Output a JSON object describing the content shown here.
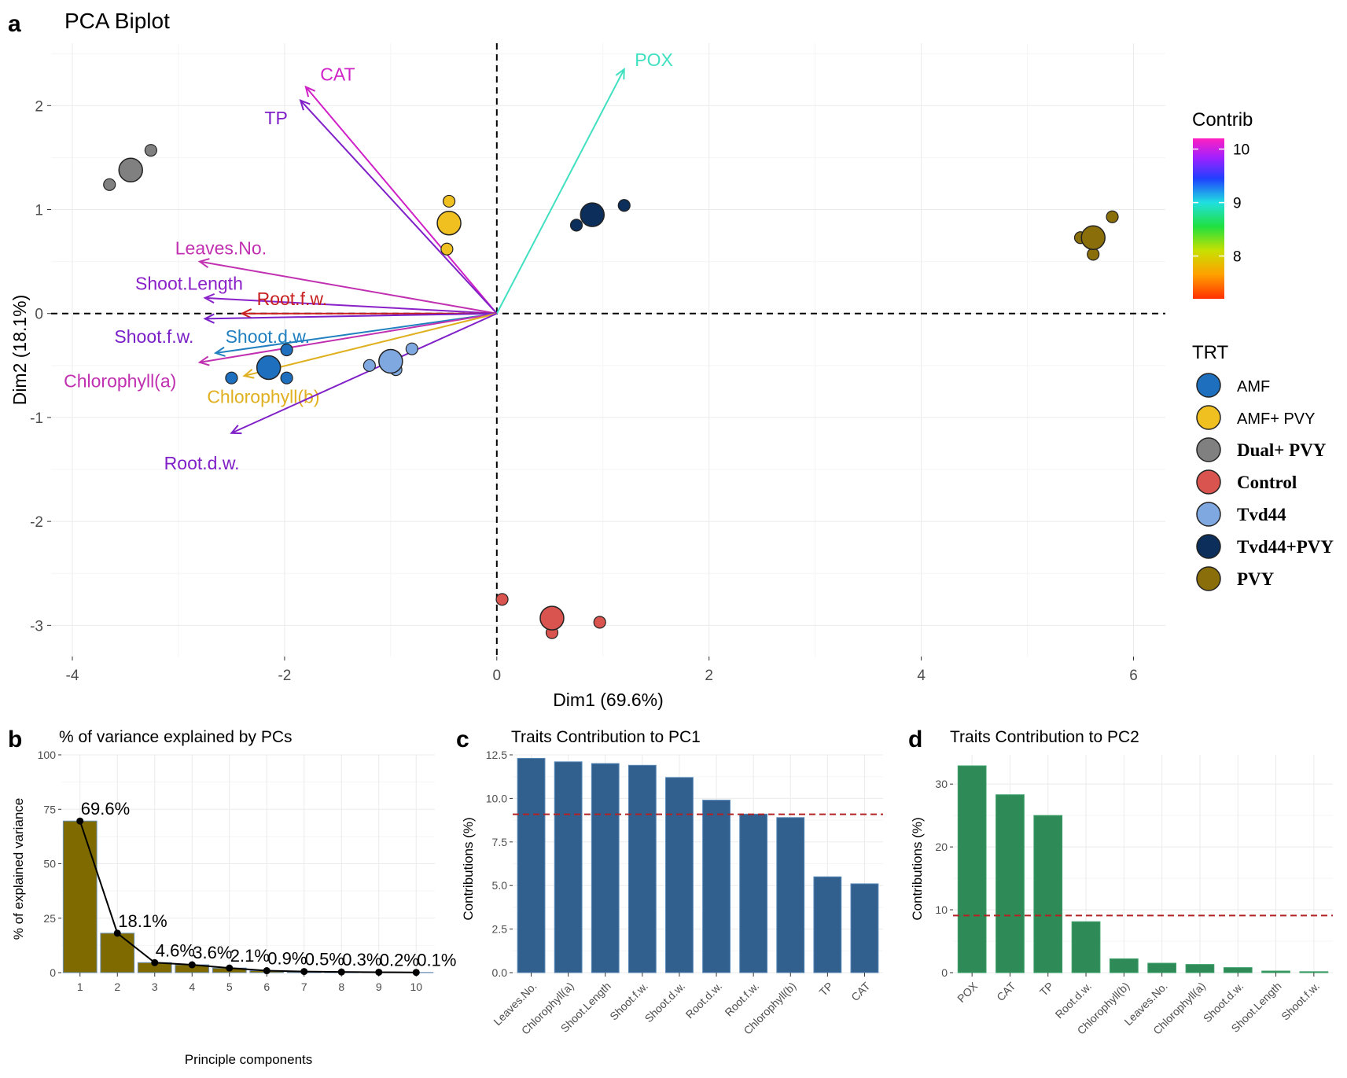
{
  "chart_data": [
    {
      "panel": "a",
      "type": "scatter",
      "title": "PCA Biplot",
      "xlabel": "Dim1 (69.6%)",
      "ylabel": "Dim2 (18.1%)",
      "xlim": [
        -4.2,
        6.3
      ],
      "ylim": [
        -3.3,
        2.6
      ],
      "xticks": [
        -4,
        -2,
        0,
        2,
        4,
        6
      ],
      "yticks": [
        -3,
        -2,
        -1,
        0,
        1,
        2
      ],
      "groups": [
        {
          "name": "AMF",
          "color": "#1f6fbf",
          "centroid": [
            -2.15,
            -0.52
          ],
          "points": [
            [
              -2.5,
              -0.62
            ],
            [
              -1.98,
              -0.35
            ],
            [
              -1.98,
              -0.62
            ]
          ]
        },
        {
          "name": "AMF+ PVY",
          "color": "#f0c020",
          "centroid": [
            -0.45,
            0.87
          ],
          "points": [
            [
              -0.45,
              1.08
            ],
            [
              -0.47,
              0.62
            ]
          ]
        },
        {
          "name": "Dual+ PVY",
          "color": "#808080",
          "centroid": [
            -3.45,
            1.38
          ],
          "points": [
            [
              -3.26,
              1.57
            ],
            [
              -3.65,
              1.24
            ]
          ]
        },
        {
          "name": "Control",
          "color": "#d9534f",
          "centroid": [
            0.52,
            -2.93
          ],
          "points": [
            [
              0.05,
              -2.75
            ],
            [
              0.97,
              -2.97
            ],
            [
              0.52,
              -3.07
            ]
          ]
        },
        {
          "name": "Tvd44",
          "color": "#7fa8e0",
          "centroid": [
            -1.0,
            -0.46
          ],
          "points": [
            [
              -0.8,
              -0.34
            ],
            [
              -1.2,
              -0.5
            ],
            [
              -0.95,
              -0.54
            ]
          ]
        },
        {
          "name": "Tvd44+PVY",
          "color": "#0b2e5a",
          "centroid": [
            0.9,
            0.95
          ],
          "points": [
            [
              1.2,
              1.04
            ],
            [
              0.75,
              0.85
            ]
          ]
        },
        {
          "name": "PVY",
          "color": "#8a6e0a",
          "centroid": [
            5.62,
            0.73
          ],
          "points": [
            [
              5.8,
              0.93
            ],
            [
              5.5,
              0.73
            ],
            [
              5.62,
              0.57
            ]
          ]
        }
      ],
      "variables": [
        {
          "name": "CAT",
          "x": -1.8,
          "y": 2.18,
          "contrib": 9.8,
          "color": "#d020c8",
          "label_x": -1.5,
          "label_y": 2.3
        },
        {
          "name": "TP",
          "x": -1.85,
          "y": 2.05,
          "contrib": 9.3,
          "color": "#8020c8",
          "label_x": -2.08,
          "label_y": 1.88
        },
        {
          "name": "POX",
          "x": 1.2,
          "y": 2.35,
          "contrib": 8.6,
          "color": "#40e0c0",
          "label_x": 1.48,
          "label_y": 2.44
        },
        {
          "name": "Leaves.No.",
          "x": -2.8,
          "y": 0.5,
          "contrib": 9.9,
          "color": "#c030b0",
          "label_x": -2.6,
          "label_y": 0.63
        },
        {
          "name": "Shoot.Length",
          "x": -2.75,
          "y": 0.15,
          "contrib": 9.6,
          "color": "#8a20c8",
          "label_x": -2.9,
          "label_y": 0.29
        },
        {
          "name": "Root.f.w.",
          "x": -2.4,
          "y": 0.0,
          "contrib": 7.0,
          "color": "#c82020",
          "label_x": -1.93,
          "label_y": 0.14
        },
        {
          "name": "Shoot.f.w.",
          "x": -2.75,
          "y": -0.05,
          "contrib": 9.5,
          "color": "#7a20c8",
          "label_x": -3.23,
          "label_y": -0.22
        },
        {
          "name": "Shoot.d.w.",
          "x": -2.65,
          "y": -0.38,
          "contrib": 8.8,
          "color": "#2080c0",
          "label_x": -2.16,
          "label_y": -0.22
        },
        {
          "name": "Chlorophyll(a)",
          "x": -2.8,
          "y": -0.47,
          "contrib": 9.7,
          "color": "#c030b0",
          "label_x": -3.55,
          "label_y": -0.65
        },
        {
          "name": "Chlorophyll(b)",
          "x": -2.38,
          "y": -0.6,
          "contrib": 7.5,
          "color": "#e0b020",
          "label_x": -2.2,
          "label_y": -0.8
        },
        {
          "name": "Root.d.w.",
          "x": -2.5,
          "y": -1.15,
          "contrib": 9.2,
          "color": "#8020c8",
          "label_x": -2.78,
          "label_y": -1.44
        }
      ],
      "legend_contrib": {
        "title": "Contrib",
        "ticks": [
          10,
          9,
          8
        ],
        "range": [
          7.2,
          10.2
        ]
      },
      "legend_trt": {
        "title": "TRT",
        "items": [
          "AMF",
          "AMF+ PVY",
          "Dual+ PVY",
          "Control",
          "Tvd44",
          "Tvd44+PVY",
          "PVY"
        ]
      }
    },
    {
      "panel": "b",
      "type": "bar",
      "title": "% of variance explained by PCs",
      "xlabel": "Principle components",
      "ylabel": "% of explained variance",
      "ylim": [
        0,
        100
      ],
      "yticks": [
        0,
        25,
        50,
        75,
        100
      ],
      "categories": [
        "1",
        "2",
        "3",
        "4",
        "5",
        "6",
        "7",
        "8",
        "9",
        "10"
      ],
      "values": [
        69.6,
        18.1,
        4.6,
        3.6,
        2.1,
        0.9,
        0.5,
        0.3,
        0.2,
        0.1
      ],
      "data_labels": [
        "69.6%",
        "18.1%",
        "4.6%",
        "3.6%",
        "2.1%",
        "0.9%",
        "0.5%",
        "0.3%",
        "0.2%",
        "0.1%"
      ],
      "color": "#7f6a00"
    },
    {
      "panel": "c",
      "type": "bar",
      "title": "Traits Contribution to PC1",
      "ylabel": "Contributions (%)",
      "ylim": [
        0,
        12.5
      ],
      "yticks": [
        "0.0",
        "2.5",
        "5.0",
        "7.5",
        "10.0",
        "12.5"
      ],
      "categories": [
        "Leaves.No.",
        "Chlorophyll(a)",
        "Shoot.Length",
        "Shoot.f.w.",
        "Shoot.d.w.",
        "Root.d.w.",
        "Root.f.w.",
        "Chlorophyll(b)",
        "TP",
        "CAT"
      ],
      "values": [
        12.3,
        12.1,
        12.0,
        11.9,
        11.2,
        9.9,
        9.1,
        8.9,
        5.5,
        5.1
      ],
      "reference_line": 9.09,
      "color": "#31608f"
    },
    {
      "panel": "d",
      "type": "bar",
      "title": "Traits Contribution to PC2",
      "ylabel": "Contributions (%)",
      "ylim": [
        0,
        33
      ],
      "yticks": [
        "0",
        "10",
        "20",
        "30"
      ],
      "categories": [
        "POX",
        "CAT",
        "TP",
        "Root.d.w.",
        "Chlorophyll(b)",
        "Leaves.No.",
        "Chlorophyll(a)",
        "Shoot.d.w.",
        "Shoot.Length",
        "Shoot.f.w."
      ],
      "values": [
        32.9,
        28.3,
        25.0,
        8.1,
        2.2,
        1.5,
        1.3,
        0.8,
        0.25,
        0.15
      ],
      "reference_line": 9.09,
      "color": "#2e8b57"
    }
  ]
}
